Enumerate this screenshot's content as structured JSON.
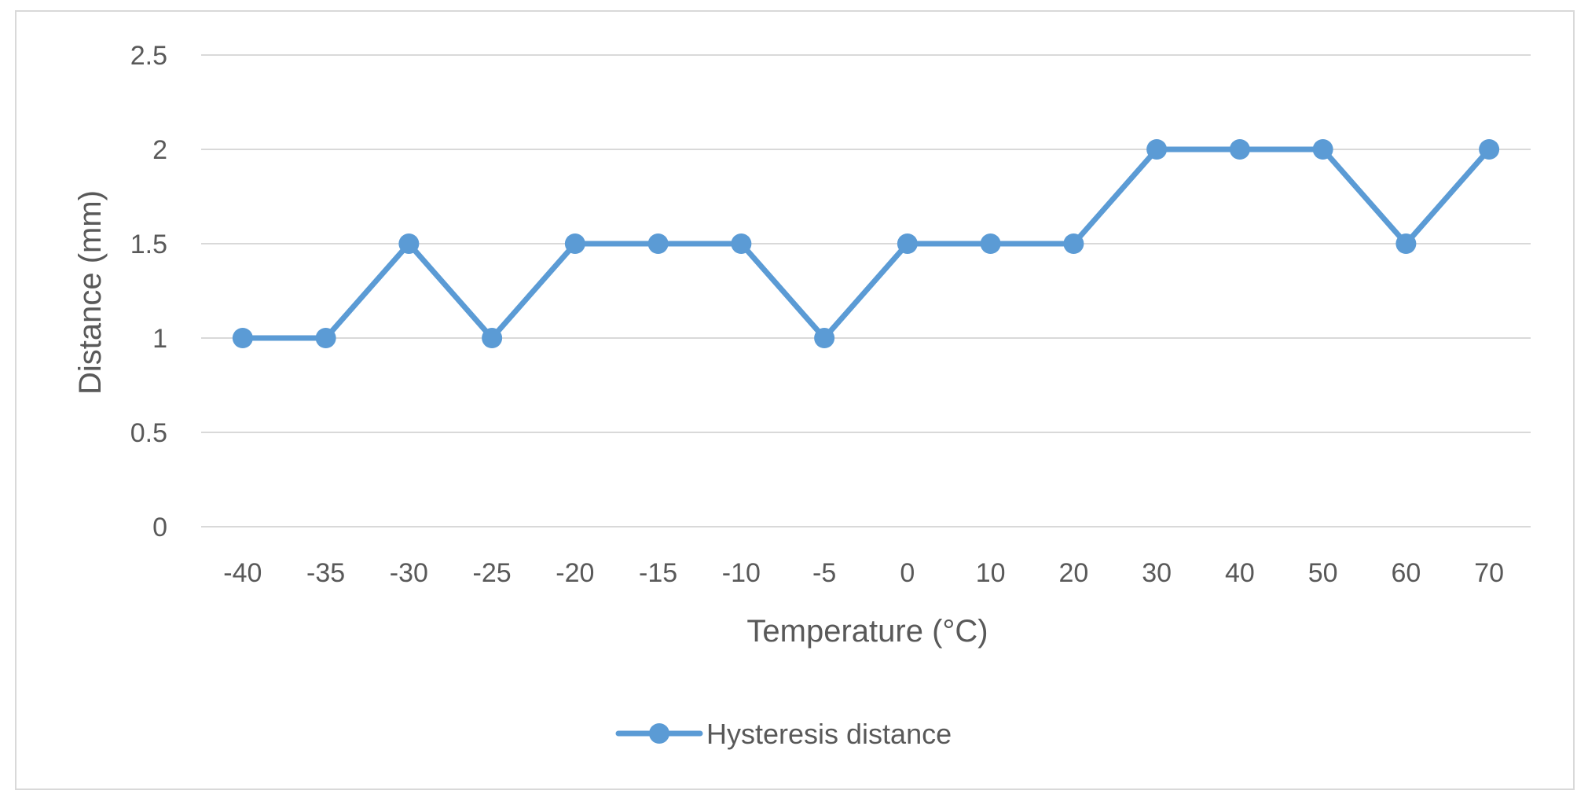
{
  "chart_data": {
    "type": "line",
    "title": "",
    "xlabel": "Temperature (°C)",
    "ylabel": "Distance (mm)",
    "categories": [
      "-40",
      "-35",
      "-30",
      "-25",
      "-20",
      "-15",
      "-10",
      "-5",
      "0",
      "10",
      "20",
      "30",
      "40",
      "50",
      "60",
      "70"
    ],
    "series": [
      {
        "name": "Hysteresis distance",
        "values": [
          1,
          1,
          1.5,
          1,
          1.5,
          1.5,
          1.5,
          1,
          1.5,
          1.5,
          1.5,
          2,
          2,
          2,
          1.5,
          2
        ],
        "color": "#5b9bd5"
      }
    ],
    "ylim": [
      0,
      2.5
    ],
    "yticks": [
      "0",
      "0.5",
      "1",
      "1.5",
      "2",
      "2.5"
    ],
    "grid": true,
    "legend_position": "bottom",
    "colors": {
      "gridline": "#d9d9d9",
      "border": "#d9d9d9",
      "text": "#595959"
    }
  }
}
